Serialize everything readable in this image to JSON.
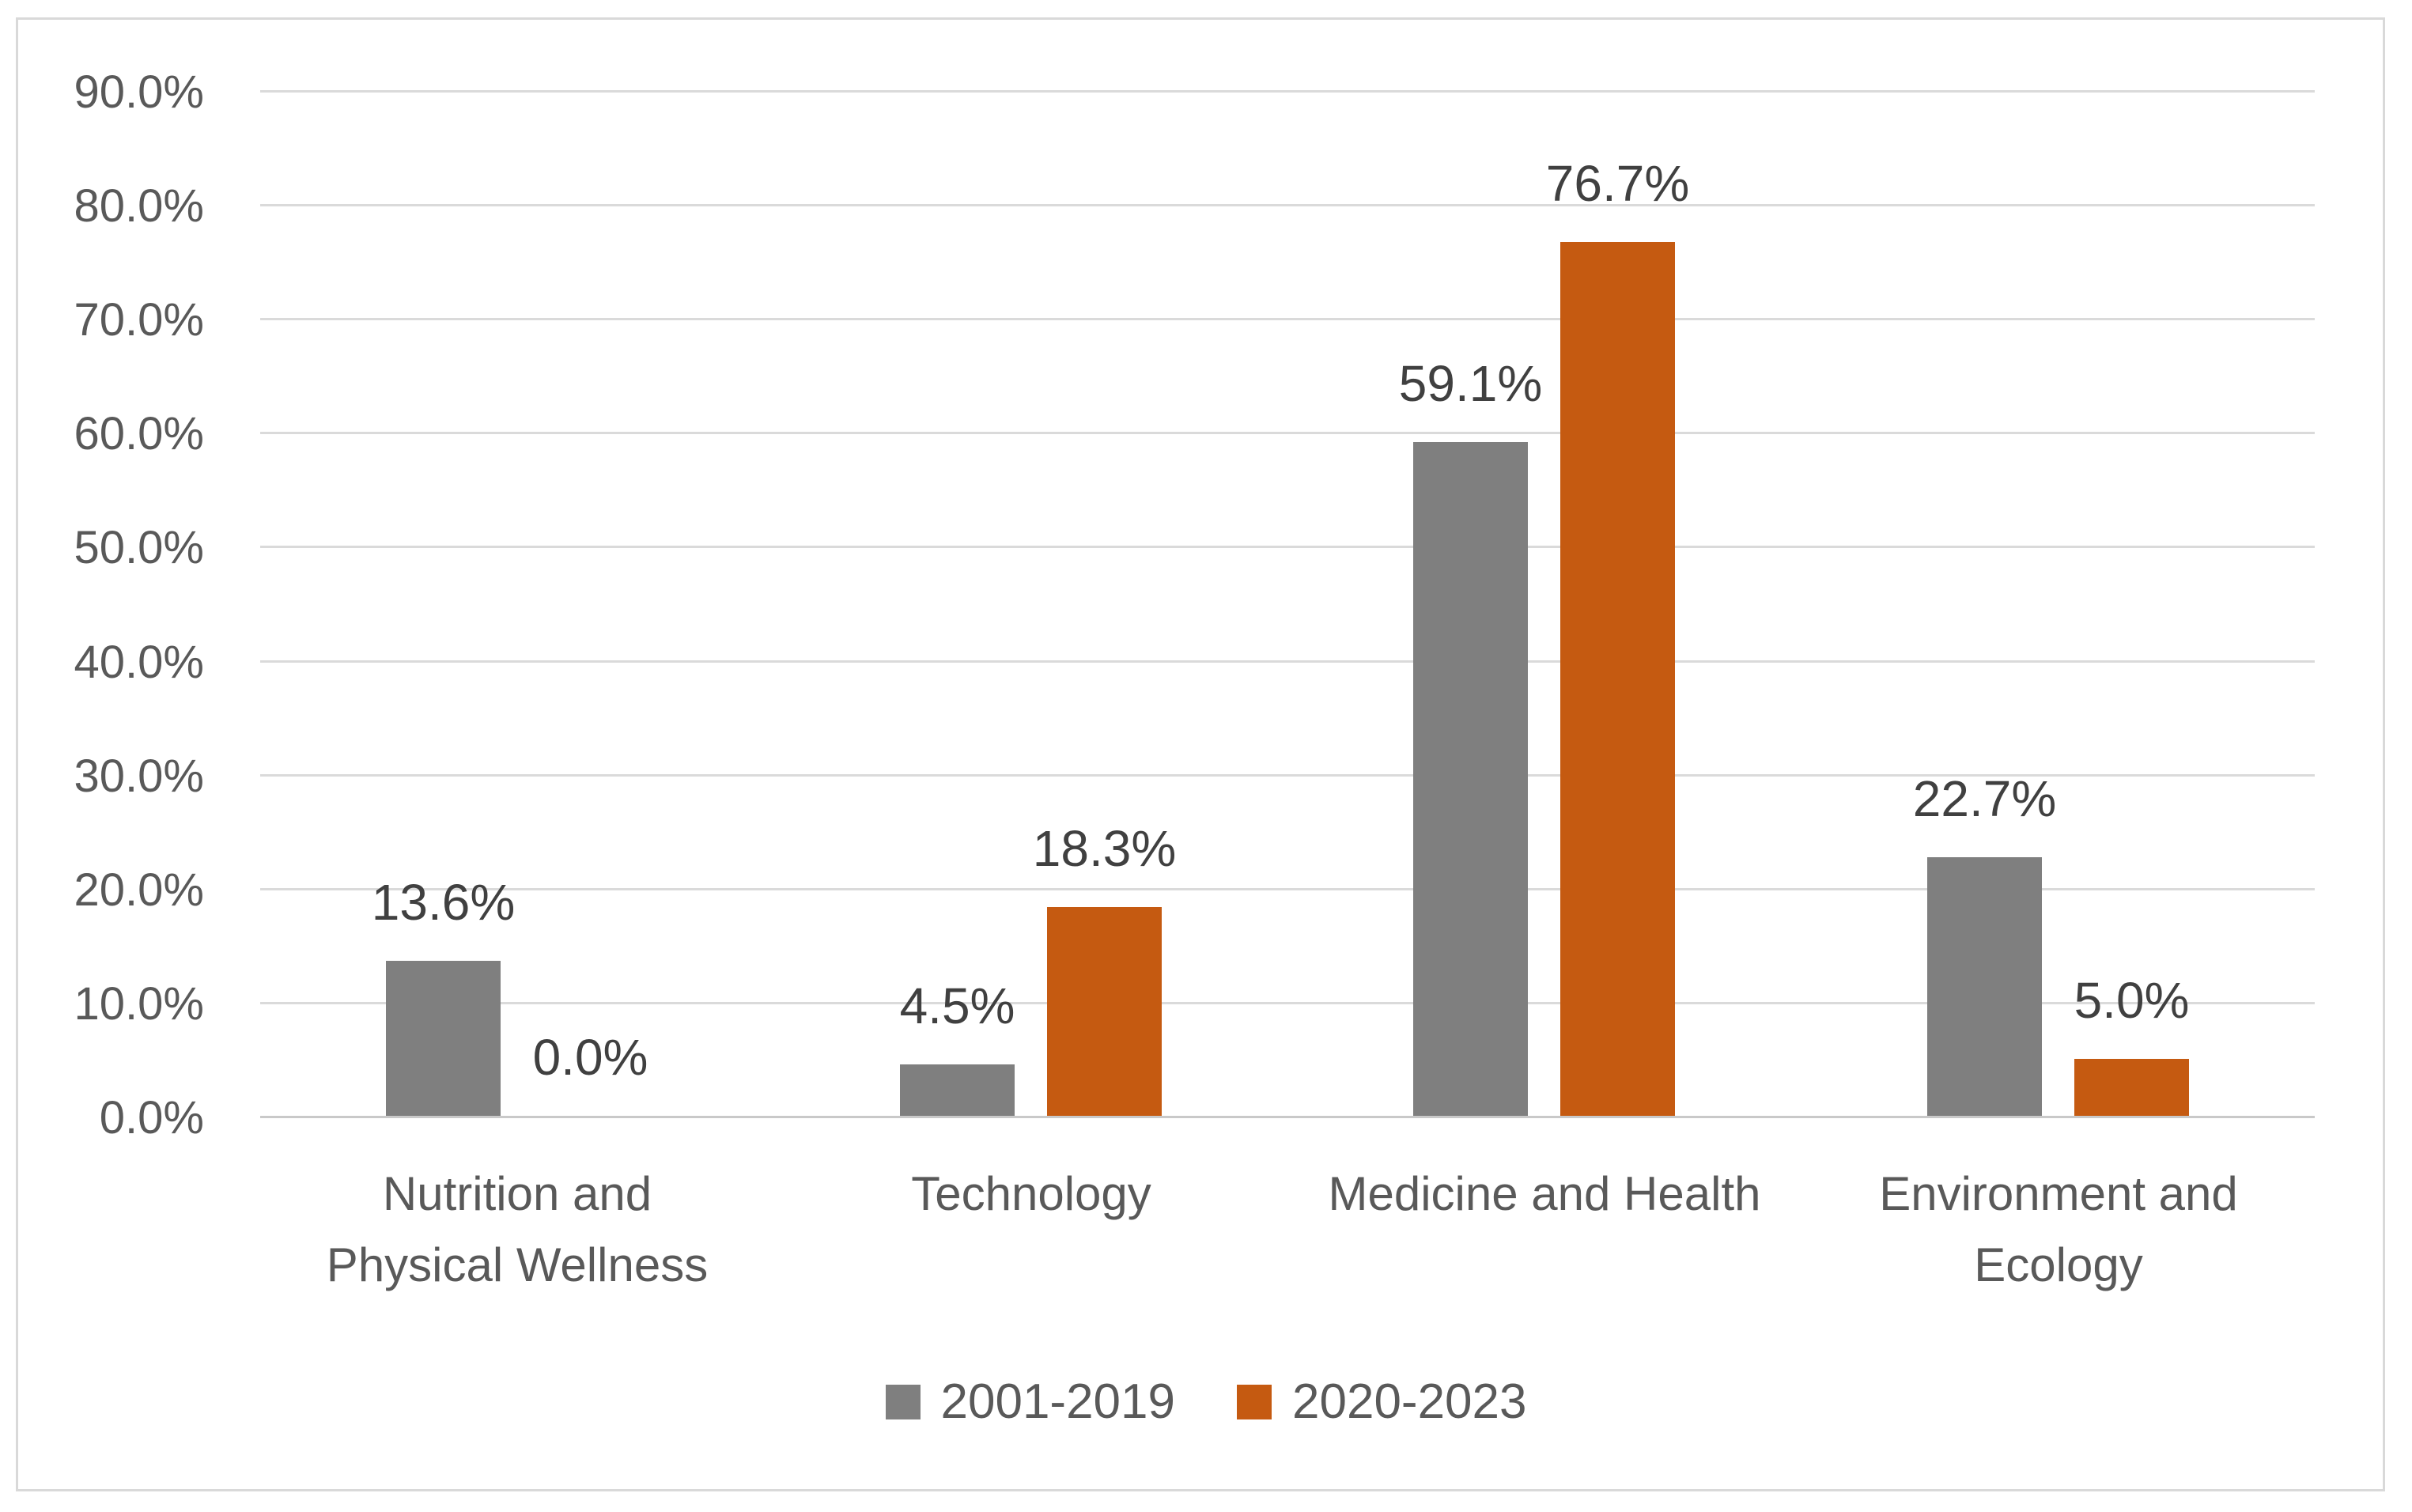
{
  "chart_data": {
    "type": "bar",
    "title": "",
    "xlabel": "",
    "ylabel": "",
    "categories": [
      {
        "lines": [
          "Nutrition and",
          "Physical Wellness"
        ]
      },
      {
        "lines": [
          "Technology"
        ]
      },
      {
        "lines": [
          "Medicine and Health"
        ]
      },
      {
        "lines": [
          "Environment and",
          "Ecology"
        ]
      }
    ],
    "series": [
      {
        "name": "2001-2019",
        "color": "#7F7F7F",
        "values": [
          13.6,
          4.5,
          59.1,
          22.7
        ],
        "labels": [
          "13.6%",
          "4.5%",
          "59.1%",
          "22.7%"
        ]
      },
      {
        "name": "2020-2023",
        "color": "#C55A11",
        "values": [
          0.0,
          18.3,
          76.7,
          5.0
        ],
        "labels": [
          "0.0%",
          "18.3%",
          "76.7%",
          "5.0%"
        ]
      }
    ],
    "ylim": [
      0,
      90
    ],
    "ytick_step": 10,
    "ytick_labels": [
      "0.0%",
      "10.0%",
      "20.0%",
      "30.0%",
      "40.0%",
      "50.0%",
      "60.0%",
      "70.0%",
      "80.0%",
      "90.0%"
    ],
    "grid": true,
    "gridline_color": "#DADADA",
    "legend_position": "bottom-center"
  }
}
